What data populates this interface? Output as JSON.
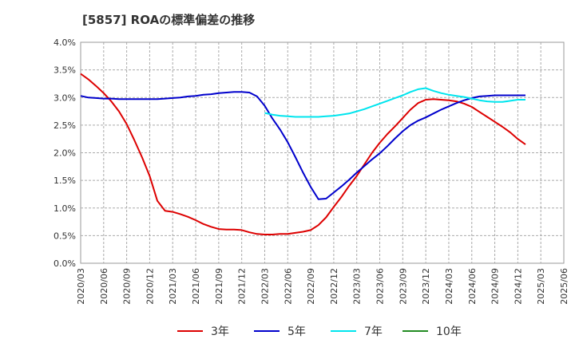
{
  "chart_data": {
    "type": "line",
    "title": "[5857]  ROAの標準偏差の推移",
    "xlabel": "",
    "ylabel": "",
    "ylim": [
      0,
      4.0
    ],
    "y_ticks": [
      "0.0%",
      "0.5%",
      "1.0%",
      "1.5%",
      "2.0%",
      "2.5%",
      "3.0%",
      "3.5%",
      "4.0%"
    ],
    "x_ticks": [
      "2020/03",
      "2020/06",
      "2020/09",
      "2020/12",
      "2021/03",
      "2021/06",
      "2021/09",
      "2021/12",
      "2022/03",
      "2022/06",
      "2022/09",
      "2022/12",
      "2023/03",
      "2023/06",
      "2023/09",
      "2023/12",
      "2024/03",
      "2024/06",
      "2024/09",
      "2024/12",
      "2025/03",
      "2025/06"
    ],
    "grid": true,
    "legend_position": "bottom",
    "series": [
      {
        "name": "3年",
        "color": "#dd0000",
        "points": [
          [
            "2020/03",
            3.43
          ],
          [
            "2020/04",
            3.33
          ],
          [
            "2020/05",
            3.21
          ],
          [
            "2020/06",
            3.08
          ],
          [
            "2020/07",
            2.93
          ],
          [
            "2020/08",
            2.75
          ],
          [
            "2020/09",
            2.52
          ],
          [
            "2020/10",
            2.23
          ],
          [
            "2020/11",
            1.92
          ],
          [
            "2020/12",
            1.58
          ],
          [
            "2021/01",
            1.13
          ],
          [
            "2021/02",
            0.95
          ],
          [
            "2021/03",
            0.93
          ],
          [
            "2021/04",
            0.89
          ],
          [
            "2021/05",
            0.84
          ],
          [
            "2021/06",
            0.78
          ],
          [
            "2021/07",
            0.71
          ],
          [
            "2021/08",
            0.66
          ],
          [
            "2021/09",
            0.62
          ],
          [
            "2021/10",
            0.61
          ],
          [
            "2021/11",
            0.61
          ],
          [
            "2021/12",
            0.6
          ],
          [
            "2022/01",
            0.56
          ],
          [
            "2022/02",
            0.53
          ],
          [
            "2022/03",
            0.52
          ],
          [
            "2022/04",
            0.52
          ],
          [
            "2022/05",
            0.53
          ],
          [
            "2022/06",
            0.53
          ],
          [
            "2022/07",
            0.55
          ],
          [
            "2022/08",
            0.57
          ],
          [
            "2022/09",
            0.6
          ],
          [
            "2022/10",
            0.69
          ],
          [
            "2022/11",
            0.83
          ],
          [
            "2022/12",
            1.02
          ],
          [
            "2023/01",
            1.2
          ],
          [
            "2023/02",
            1.4
          ],
          [
            "2023/03",
            1.58
          ],
          [
            "2023/04",
            1.79
          ],
          [
            "2023/05",
            2.0
          ],
          [
            "2023/06",
            2.18
          ],
          [
            "2023/07",
            2.34
          ],
          [
            "2023/08",
            2.48
          ],
          [
            "2023/09",
            2.63
          ],
          [
            "2023/10",
            2.78
          ],
          [
            "2023/11",
            2.9
          ],
          [
            "2023/12",
            2.96
          ],
          [
            "2024/01",
            2.97
          ],
          [
            "2024/02",
            2.96
          ],
          [
            "2024/03",
            2.95
          ],
          [
            "2024/04",
            2.93
          ],
          [
            "2024/05",
            2.89
          ],
          [
            "2024/06",
            2.83
          ],
          [
            "2024/07",
            2.74
          ],
          [
            "2024/08",
            2.65
          ],
          [
            "2024/09",
            2.56
          ],
          [
            "2024/10",
            2.47
          ],
          [
            "2024/11",
            2.37
          ],
          [
            "2024/12",
            2.25
          ],
          [
            "2025/01",
            2.15
          ]
        ]
      },
      {
        "name": "5年",
        "color": "#0000cc",
        "points": [
          [
            "2020/03",
            3.03
          ],
          [
            "2020/04",
            3.0
          ],
          [
            "2020/05",
            2.99
          ],
          [
            "2020/06",
            2.98
          ],
          [
            "2020/07",
            2.98
          ],
          [
            "2020/08",
            2.97
          ],
          [
            "2020/09",
            2.97
          ],
          [
            "2020/10",
            2.97
          ],
          [
            "2020/11",
            2.97
          ],
          [
            "2020/12",
            2.97
          ],
          [
            "2021/01",
            2.97
          ],
          [
            "2021/02",
            2.98
          ],
          [
            "2021/03",
            2.99
          ],
          [
            "2021/04",
            3.0
          ],
          [
            "2021/05",
            3.02
          ],
          [
            "2021/06",
            3.03
          ],
          [
            "2021/07",
            3.05
          ],
          [
            "2021/08",
            3.06
          ],
          [
            "2021/09",
            3.08
          ],
          [
            "2021/10",
            3.09
          ],
          [
            "2021/11",
            3.1
          ],
          [
            "2021/12",
            3.1
          ],
          [
            "2022/01",
            3.09
          ],
          [
            "2022/02",
            3.02
          ],
          [
            "2022/03",
            2.85
          ],
          [
            "2022/04",
            2.62
          ],
          [
            "2022/05",
            2.42
          ],
          [
            "2022/06",
            2.19
          ],
          [
            "2022/07",
            1.92
          ],
          [
            "2022/08",
            1.64
          ],
          [
            "2022/09",
            1.38
          ],
          [
            "2022/10",
            1.16
          ],
          [
            "2022/11",
            1.17
          ],
          [
            "2022/12",
            1.28
          ],
          [
            "2023/01",
            1.39
          ],
          [
            "2023/02",
            1.51
          ],
          [
            "2023/03",
            1.64
          ],
          [
            "2023/04",
            1.76
          ],
          [
            "2023/05",
            1.88
          ],
          [
            "2023/06",
            1.99
          ],
          [
            "2023/07",
            2.12
          ],
          [
            "2023/08",
            2.26
          ],
          [
            "2023/09",
            2.39
          ],
          [
            "2023/10",
            2.5
          ],
          [
            "2023/11",
            2.58
          ],
          [
            "2023/12",
            2.64
          ],
          [
            "2024/01",
            2.71
          ],
          [
            "2024/02",
            2.78
          ],
          [
            "2024/03",
            2.84
          ],
          [
            "2024/04",
            2.9
          ],
          [
            "2024/05",
            2.95
          ],
          [
            "2024/06",
            2.99
          ],
          [
            "2024/07",
            3.02
          ],
          [
            "2024/08",
            3.03
          ],
          [
            "2024/09",
            3.04
          ],
          [
            "2024/10",
            3.04
          ],
          [
            "2024/11",
            3.04
          ],
          [
            "2024/12",
            3.04
          ],
          [
            "2025/01",
            3.04
          ]
        ]
      },
      {
        "name": "7年",
        "color": "#00e5ee",
        "points": [
          [
            "2022/03",
            2.72
          ],
          [
            "2022/04",
            2.69
          ],
          [
            "2022/05",
            2.67
          ],
          [
            "2022/06",
            2.66
          ],
          [
            "2022/07",
            2.65
          ],
          [
            "2022/08",
            2.65
          ],
          [
            "2022/09",
            2.65
          ],
          [
            "2022/10",
            2.65
          ],
          [
            "2022/11",
            2.66
          ],
          [
            "2022/12",
            2.67
          ],
          [
            "2023/01",
            2.69
          ],
          [
            "2023/02",
            2.71
          ],
          [
            "2023/03",
            2.75
          ],
          [
            "2023/04",
            2.79
          ],
          [
            "2023/05",
            2.84
          ],
          [
            "2023/06",
            2.89
          ],
          [
            "2023/07",
            2.94
          ],
          [
            "2023/08",
            2.99
          ],
          [
            "2023/09",
            3.04
          ],
          [
            "2023/10",
            3.1
          ],
          [
            "2023/11",
            3.15
          ],
          [
            "2023/12",
            3.17
          ],
          [
            "2024/01",
            3.12
          ],
          [
            "2024/02",
            3.08
          ],
          [
            "2024/03",
            3.05
          ],
          [
            "2024/04",
            3.03
          ],
          [
            "2024/05",
            3.01
          ],
          [
            "2024/06",
            2.98
          ],
          [
            "2024/07",
            2.95
          ],
          [
            "2024/08",
            2.93
          ],
          [
            "2024/09",
            2.92
          ],
          [
            "2024/10",
            2.92
          ],
          [
            "2024/11",
            2.94
          ],
          [
            "2024/12",
            2.96
          ],
          [
            "2025/01",
            2.96
          ]
        ]
      },
      {
        "name": "10年",
        "color": "#228b22",
        "points": []
      }
    ]
  }
}
